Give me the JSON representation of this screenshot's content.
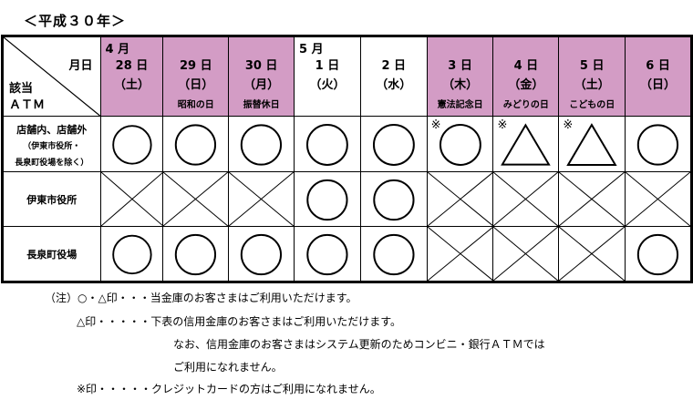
{
  "title": "＜平成３０年＞",
  "corner": {
    "top_right": "月日",
    "bottom_left_1": "該当",
    "bottom_left_2": "ＡＴＭ"
  },
  "columns": [
    {
      "month": "4 月",
      "day": "28 日",
      "dow": "（土）",
      "holiday": "",
      "highlight": true
    },
    {
      "month": "",
      "day": "29 日",
      "dow": "（日）",
      "holiday": "昭和の日",
      "highlight": true
    },
    {
      "month": "",
      "day": "30 日",
      "dow": "（月）",
      "holiday": "振替休日",
      "highlight": true
    },
    {
      "month": "5 月",
      "day": "1 日",
      "dow": "（火）",
      "holiday": "",
      "highlight": false
    },
    {
      "month": "",
      "day": "2 日",
      "dow": "（水）",
      "holiday": "",
      "highlight": false
    },
    {
      "month": "",
      "day": "3 日",
      "dow": "（木）",
      "holiday": "憲法記念日",
      "highlight": true
    },
    {
      "month": "",
      "day": "4 日",
      "dow": "（金）",
      "holiday": "みどりの日",
      "highlight": true
    },
    {
      "month": "",
      "day": "5 日",
      "dow": "（土）",
      "holiday": "こどもの日",
      "highlight": true
    },
    {
      "month": "",
      "day": "6 日",
      "dow": "（日）",
      "holiday": "",
      "highlight": true
    }
  ],
  "rows": [
    {
      "label": "店舗内、店舗外",
      "sub1": "（伊東市役所・",
      "sub2": "長泉町役場を除く）",
      "marks": [
        "circle",
        "circle",
        "circle",
        "circle",
        "circle",
        "circle",
        "triangle",
        "triangle",
        "circle"
      ],
      "notes": [
        "",
        "",
        "",
        "",
        "",
        "※",
        "※",
        "※",
        ""
      ]
    },
    {
      "label": "伊東市役所",
      "sub1": "",
      "sub2": "",
      "marks": [
        "cross",
        "cross",
        "cross",
        "circle",
        "circle",
        "cross",
        "cross",
        "cross",
        "cross"
      ],
      "notes": [
        "",
        "",
        "",
        "",
        "",
        "",
        "",
        "",
        ""
      ]
    },
    {
      "label": "長泉町役場",
      "sub1": "",
      "sub2": "",
      "marks": [
        "circle",
        "circle",
        "circle",
        "circle",
        "circle",
        "cross",
        "cross",
        "cross",
        "circle"
      ],
      "notes": [
        "",
        "",
        "",
        "",
        "",
        "",
        "",
        "",
        ""
      ]
    }
  ],
  "notes": [
    "（注）○・△印・・・当金庫のお客さまはご利用いただけます。",
    "△印・・・・・下表の信用金庫のお客さまはご利用いただけます。",
    "なお、信用金庫のお客さまはシステム更新のためコンビニ・銀行ＡＴＭでは",
    "ご利用になれません。",
    "※印・・・・・クレジットカードの方はご利用になれません。"
  ],
  "colors": {
    "highlight": "#d39cc5"
  }
}
